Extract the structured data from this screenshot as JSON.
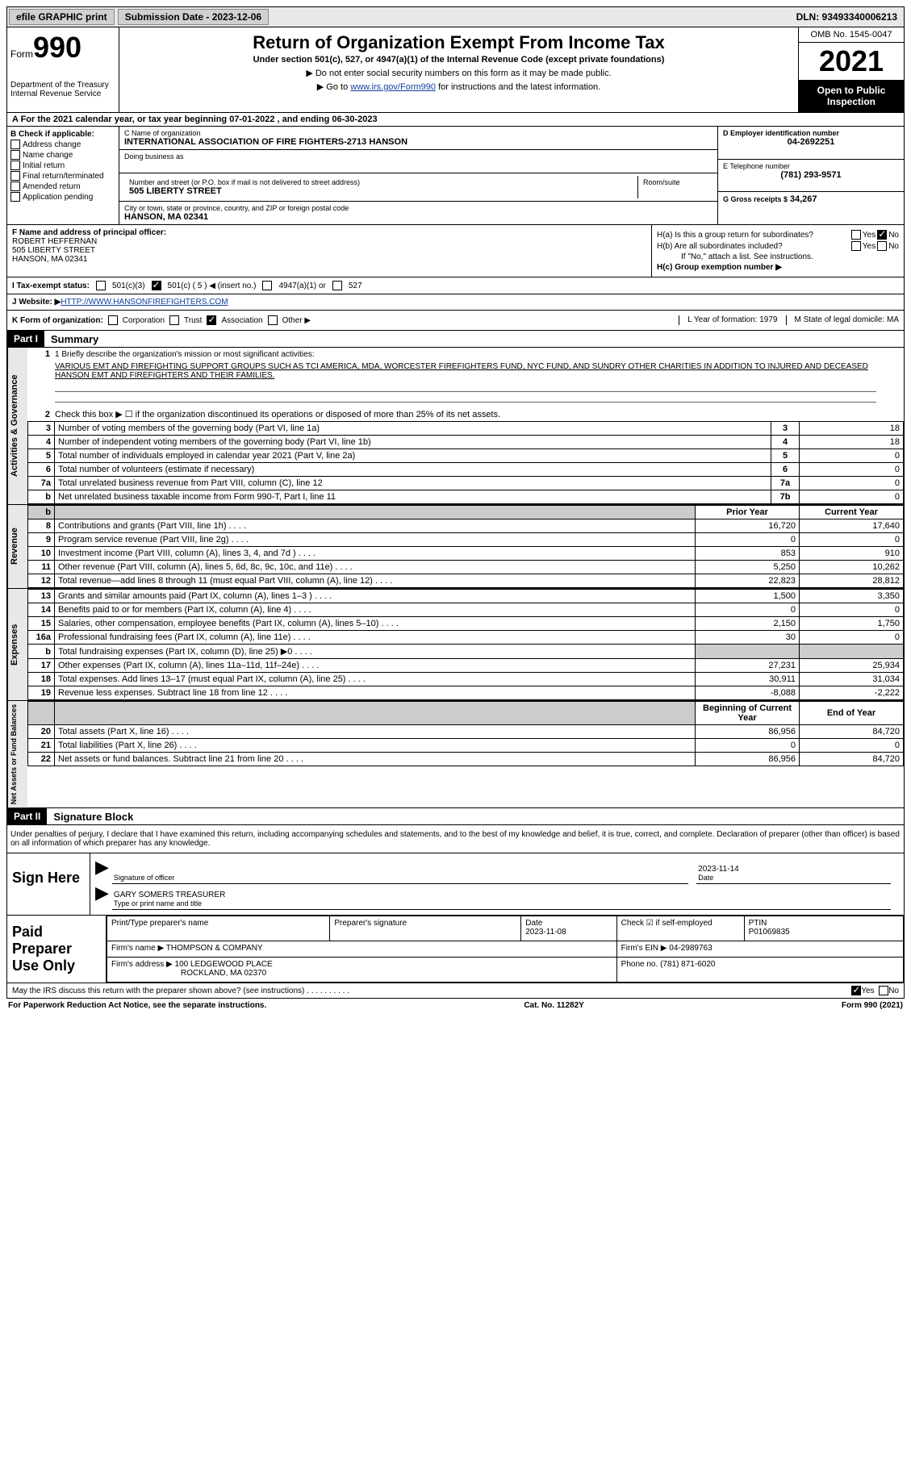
{
  "topbar": {
    "efile": "efile GRAPHIC print",
    "submission_label": "Submission Date - 2023-12-06",
    "dln_label": "DLN: 93493340006213"
  },
  "header": {
    "form_word": "Form",
    "form_num": "990",
    "dept": "Department of the Treasury Internal Revenue Service",
    "title": "Return of Organization Exempt From Income Tax",
    "subtitle": "Under section 501(c), 527, or 4947(a)(1) of the Internal Revenue Code (except private foundations)",
    "line1": "▶ Do not enter social security numbers on this form as it may be made public.",
    "line2_pre": "▶ Go to ",
    "line2_link": "www.irs.gov/Form990",
    "line2_post": " for instructions and the latest information.",
    "omb": "OMB No. 1545-0047",
    "year": "2021",
    "open": "Open to Public Inspection"
  },
  "row_a": "A  For the 2021 calendar year, or tax year beginning 07-01-2022   , and ending 06-30-2023",
  "col_b": {
    "label": "B Check if applicable:",
    "items": [
      "Address change",
      "Name change",
      "Initial return",
      "Final return/terminated",
      "Amended return",
      "Application pending"
    ]
  },
  "col_c": {
    "name_lab": "C Name of organization",
    "name": "INTERNATIONAL ASSOCIATION OF FIRE FIGHTERS-2713 HANSON",
    "dba_lab": "Doing business as",
    "street_lab": "Number and street (or P.O. box if mail is not delivered to street address)",
    "room_lab": "Room/suite",
    "street": "505 LIBERTY STREET",
    "city_lab": "City or town, state or province, country, and ZIP or foreign postal code",
    "city": "HANSON, MA  02341"
  },
  "col_d": {
    "ein_lab": "D Employer identification number",
    "ein": "04-2692251",
    "tel_lab": "E Telephone number",
    "tel": "(781) 293-9571",
    "gross_lab": "G Gross receipts $",
    "gross": "34,267"
  },
  "col_f": {
    "lab": "F Name and address of principal officer:",
    "name": "ROBERT HEFFERNAN",
    "street": "505 LIBERTY STREET",
    "city": "HANSON, MA  02341"
  },
  "col_h": {
    "ha": "H(a)  Is this a group return for subordinates?",
    "hb": "H(b)  Are all subordinates included?",
    "hb_note": "If \"No,\" attach a list. See instructions.",
    "hc": "H(c)  Group exemption number ▶",
    "yes": "Yes",
    "no": "No"
  },
  "row_i": {
    "lab": "I   Tax-exempt status:",
    "o1": "501(c)(3)",
    "o2": "501(c) ( 5 ) ◀ (insert no.)",
    "o3": "4947(a)(1) or",
    "o4": "527"
  },
  "row_j": {
    "lab": "J   Website: ▶ ",
    "url": "HTTP://WWW.HANSONFIREFIGHTERS.COM"
  },
  "row_k": {
    "lab": "K Form of organization:",
    "o1": "Corporation",
    "o2": "Trust",
    "o3": "Association",
    "o4": "Other ▶",
    "l": "L Year of formation: 1979",
    "m": "M State of legal domicile: MA"
  },
  "part1": {
    "tag": "Part I",
    "title": "Summary"
  },
  "mission_lab": "1   Briefly describe the organization's mission or most significant activities:",
  "mission": "VARIOUS EMT AND FIREFIGHTING SUPPORT GROUPS SUCH AS TCI AMERICA, MDA, WORCESTER FIREFIGHTERS FUND, NYC FUND, AND SUNDRY OTHER CHARITIES IN ADDITION TO INJURED AND DECEASED HANSON EMT AND FIREFIGHTERS AND THEIR FAMILIES.",
  "line2": "Check this box ▶ ☐ if the organization discontinued its operations or disposed of more than 25% of its net assets.",
  "gov_rows": [
    {
      "n": "3",
      "desc": "Number of voting members of the governing body (Part VI, line 1a)",
      "box": "3",
      "val": "18"
    },
    {
      "n": "4",
      "desc": "Number of independent voting members of the governing body (Part VI, line 1b)",
      "box": "4",
      "val": "18"
    },
    {
      "n": "5",
      "desc": "Total number of individuals employed in calendar year 2021 (Part V, line 2a)",
      "box": "5",
      "val": "0"
    },
    {
      "n": "6",
      "desc": "Total number of volunteers (estimate if necessary)",
      "box": "6",
      "val": "0"
    },
    {
      "n": "7a",
      "desc": "Total unrelated business revenue from Part VIII, column (C), line 12",
      "box": "7a",
      "val": "0"
    },
    {
      "n": "b",
      "desc": "Net unrelated business taxable income from Form 990-T, Part I, line 11",
      "box": "7b",
      "val": "0"
    }
  ],
  "rev_hdr": {
    "prior": "Prior Year",
    "curr": "Current Year"
  },
  "rev_rows": [
    {
      "n": "8",
      "desc": "Contributions and grants (Part VIII, line 1h)",
      "p": "16,720",
      "c": "17,640"
    },
    {
      "n": "9",
      "desc": "Program service revenue (Part VIII, line 2g)",
      "p": "0",
      "c": "0"
    },
    {
      "n": "10",
      "desc": "Investment income (Part VIII, column (A), lines 3, 4, and 7d )",
      "p": "853",
      "c": "910"
    },
    {
      "n": "11",
      "desc": "Other revenue (Part VIII, column (A), lines 5, 6d, 8c, 9c, 10c, and 11e)",
      "p": "5,250",
      "c": "10,262"
    },
    {
      "n": "12",
      "desc": "Total revenue—add lines 8 through 11 (must equal Part VIII, column (A), line 12)",
      "p": "22,823",
      "c": "28,812"
    }
  ],
  "exp_rows": [
    {
      "n": "13",
      "desc": "Grants and similar amounts paid (Part IX, column (A), lines 1–3 )",
      "p": "1,500",
      "c": "3,350"
    },
    {
      "n": "14",
      "desc": "Benefits paid to or for members (Part IX, column (A), line 4)",
      "p": "0",
      "c": "0"
    },
    {
      "n": "15",
      "desc": "Salaries, other compensation, employee benefits (Part IX, column (A), lines 5–10)",
      "p": "2,150",
      "c": "1,750"
    },
    {
      "n": "16a",
      "desc": "Professional fundraising fees (Part IX, column (A), line 11e)",
      "p": "30",
      "c": "0"
    },
    {
      "n": "b",
      "desc": "Total fundraising expenses (Part IX, column (D), line 25) ▶0",
      "p": "grey",
      "c": "grey"
    },
    {
      "n": "17",
      "desc": "Other expenses (Part IX, column (A), lines 11a–11d, 11f–24e)",
      "p": "27,231",
      "c": "25,934"
    },
    {
      "n": "18",
      "desc": "Total expenses. Add lines 13–17 (must equal Part IX, column (A), line 25)",
      "p": "30,911",
      "c": "31,034"
    },
    {
      "n": "19",
      "desc": "Revenue less expenses. Subtract line 18 from line 12",
      "p": "-8,088",
      "c": "-2,222"
    }
  ],
  "net_hdr": {
    "beg": "Beginning of Current Year",
    "end": "End of Year"
  },
  "net_rows": [
    {
      "n": "20",
      "desc": "Total assets (Part X, line 16)",
      "p": "86,956",
      "c": "84,720"
    },
    {
      "n": "21",
      "desc": "Total liabilities (Part X, line 26)",
      "p": "0",
      "c": "0"
    },
    {
      "n": "22",
      "desc": "Net assets or fund balances. Subtract line 21 from line 20",
      "p": "86,956",
      "c": "84,720"
    }
  ],
  "vtabs": {
    "gov": "Activities & Governance",
    "rev": "Revenue",
    "exp": "Expenses",
    "net": "Net Assets or Fund Balances"
  },
  "part2": {
    "tag": "Part II",
    "title": "Signature Block"
  },
  "penalty": "Under penalties of perjury, I declare that I have examined this return, including accompanying schedules and statements, and to the best of my knowledge and belief, it is true, correct, and complete. Declaration of preparer (other than officer) is based on all information of which preparer has any knowledge.",
  "sign": {
    "lab": "Sign Here",
    "sig_lab": "Signature of officer",
    "date": "2023-11-14",
    "date_lab": "Date",
    "name": "GARY SOMERS TREASURER",
    "name_lab": "Type or print name and title"
  },
  "prep": {
    "lab": "Paid Preparer Use Only",
    "h1": "Print/Type preparer's name",
    "h2": "Preparer's signature",
    "h3_lab": "Date",
    "h3": "2023-11-08",
    "h4_lab": "Check ☑ if self-employed",
    "h5_lab": "PTIN",
    "h5": "P01069835",
    "firm_lab": "Firm's name    ▶",
    "firm": "THOMPSON & COMPANY",
    "ein_lab": "Firm's EIN ▶",
    "ein": "04-2989763",
    "addr_lab": "Firm's address ▶",
    "addr1": "100 LEDGEWOOD PLACE",
    "addr2": "ROCKLAND, MA  02370",
    "phone_lab": "Phone no.",
    "phone": "(781) 871-6020"
  },
  "footer_q": "May the IRS discuss this return with the preparer shown above? (see instructions)",
  "last": {
    "left": "For Paperwork Reduction Act Notice, see the separate instructions.",
    "mid": "Cat. No. 11282Y",
    "right": "Form 990 (2021)"
  }
}
